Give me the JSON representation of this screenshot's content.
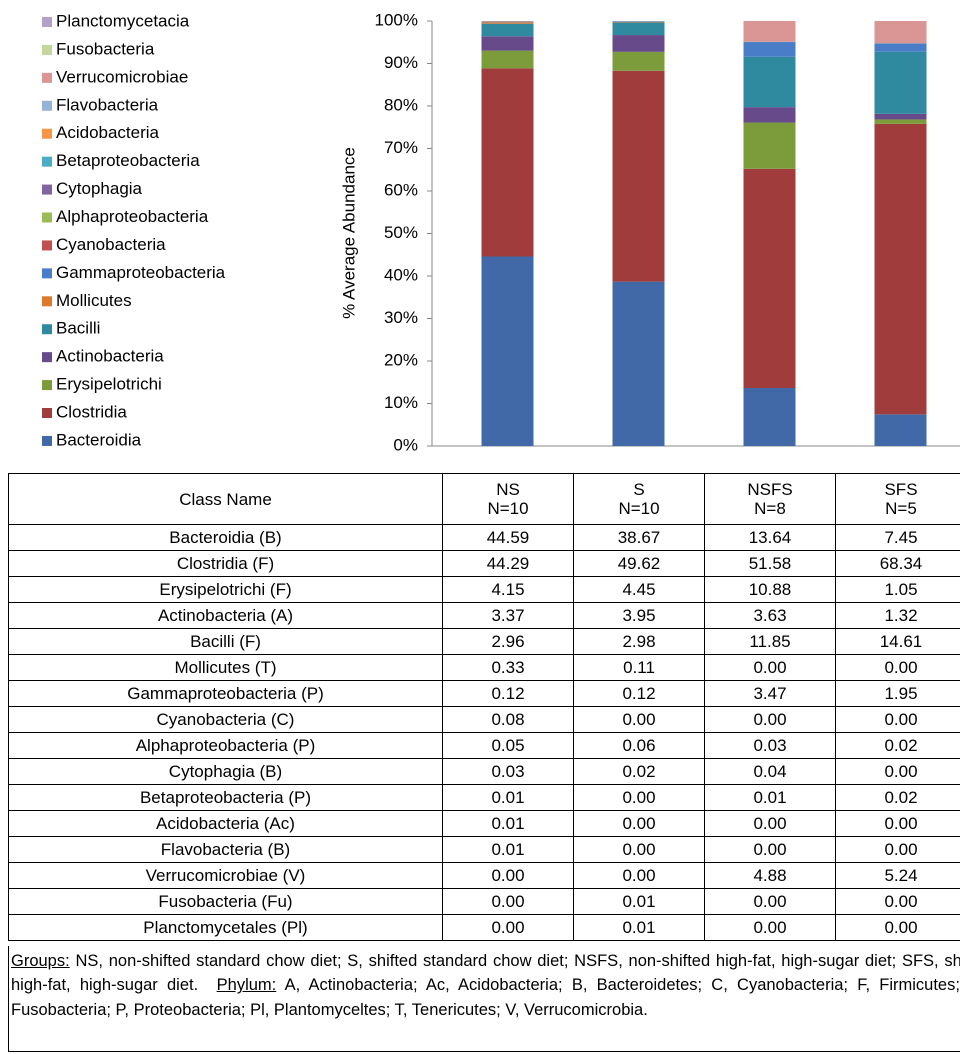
{
  "chart_data": {
    "type": "stacked_bar",
    "ylabel": "% Average Abundance",
    "categories": [
      "NS",
      "S",
      "NSFS",
      "SFS"
    ],
    "ylim": [
      0,
      100
    ],
    "yticks": [
      {
        "value": 0,
        "label": "0%"
      },
      {
        "value": 10,
        "label": "10%"
      },
      {
        "value": 20,
        "label": "20%"
      },
      {
        "value": 30,
        "label": "30%"
      },
      {
        "value": 40,
        "label": "40%"
      },
      {
        "value": 50,
        "label": "50%"
      },
      {
        "value": 60,
        "label": "60%"
      },
      {
        "value": 70,
        "label": "70%"
      },
      {
        "value": 80,
        "label": "80%"
      },
      {
        "value": 90,
        "label": "90%"
      },
      {
        "value": 100,
        "label": "100%"
      }
    ],
    "legend": "left",
    "series": [
      {
        "name": "Bacteroidia",
        "color": "#4169a8",
        "values": [
          44.59,
          38.67,
          13.64,
          7.45
        ],
        "value_labels": [
          "44.59",
          "38.67",
          "13.64",
          "7.45"
        ]
      },
      {
        "name": "Clostridia",
        "color": "#a03c3b",
        "values": [
          44.29,
          49.62,
          51.58,
          68.34
        ],
        "value_labels": [
          "44.29",
          "49.62",
          "51.58",
          "68.34"
        ]
      },
      {
        "name": "Erysipelotrichi",
        "color": "#7c9c3c",
        "values": [
          4.15,
          4.45,
          10.88,
          1.05
        ],
        "value_labels": [
          "4.15",
          "4.45",
          "10.88",
          "1.05"
        ]
      },
      {
        "name": "Actinobacteria",
        "color": "#664a8a",
        "values": [
          3.37,
          3.95,
          3.63,
          1.32
        ],
        "value_labels": [
          "3.37",
          "3.95",
          "3.63",
          "1.32"
        ]
      },
      {
        "name": "Bacilli",
        "color": "#2f8aa0",
        "values": [
          2.96,
          2.98,
          11.85,
          14.61
        ],
        "value_labels": [
          "2.96",
          "2.98",
          "11.85",
          "14.61"
        ]
      },
      {
        "name": "Mollicutes",
        "color": "#dd7a2c",
        "values": [
          0.33,
          0.11,
          0,
          0
        ],
        "value_labels": [
          "0.33",
          "0.11",
          "0.00",
          "0.00"
        ]
      },
      {
        "name": "Gammaproteobacteria",
        "color": "#4a7dc8",
        "values": [
          0.12,
          0.12,
          3.47,
          1.95
        ],
        "value_labels": [
          "0.12",
          "0.12",
          "3.47",
          "1.95"
        ]
      },
      {
        "name": "Cyanobacteria",
        "color": "#c0504d",
        "values": [
          0.08,
          0,
          0,
          0
        ],
        "value_labels": [
          "0.08",
          "0.00",
          "0.00",
          "0.00"
        ]
      },
      {
        "name": "Alphaproteobacteria",
        "color": "#9bbb59",
        "values": [
          0.05,
          0.06,
          0.03,
          0.02
        ],
        "value_labels": [
          "0.05",
          "0.06",
          "0.03",
          "0.02"
        ]
      },
      {
        "name": "Cytophagia",
        "color": "#8064a2",
        "values": [
          0.03,
          0.02,
          0.04,
          0
        ],
        "value_labels": [
          "0.03",
          "0.02",
          "0.04",
          "0.00"
        ]
      },
      {
        "name": "Betaproteobacteria",
        "color": "#4bacc6",
        "values": [
          0.01,
          0,
          0.01,
          0.02
        ],
        "value_labels": [
          "0.01",
          "0.00",
          "0.01",
          "0.02"
        ]
      },
      {
        "name": "Acidobacteria",
        "color": "#f79646",
        "values": [
          0.01,
          0,
          0,
          0
        ],
        "value_labels": [
          "0.01",
          "0.00",
          "0.00",
          "0.00"
        ]
      },
      {
        "name": "Flavobacteria",
        "color": "#95b3d7",
        "values": [
          0.01,
          0,
          0,
          0
        ],
        "value_labels": [
          "0.01",
          "0.00",
          "0.00",
          "0.00"
        ]
      },
      {
        "name": "Verrucomicrobiae",
        "color": "#d99694",
        "values": [
          0,
          0,
          4.88,
          5.24
        ],
        "value_labels": [
          "0.00",
          "0.00",
          "4.88",
          "5.24"
        ]
      },
      {
        "name": "Fusobacteria",
        "color": "#c3d69b",
        "values": [
          0,
          0.01,
          0,
          0
        ],
        "value_labels": [
          "0.00",
          "0.01",
          "0.00",
          "0.00"
        ]
      },
      {
        "name": "Planctomycetacia",
        "color": "#b2a2c7",
        "values": [
          0,
          0.01,
          0,
          0
        ],
        "value_labels": [
          "0.00",
          "0.01",
          "0.00",
          "0.00"
        ]
      }
    ]
  },
  "table": {
    "header": "Class Name",
    "group_sizes": [
      "N=10",
      "N=10",
      "N=8",
      "N=5"
    ],
    "rows": [
      "Bacteroidia (B)",
      "Clostridia (F)",
      "Erysipelotrichi (F)",
      "Actinobacteria (A)",
      "Bacilli (F)",
      "Mollicutes (T)",
      "Gammaproteobacteria (P)",
      "Cyanobacteria (C)",
      "Alphaproteobacteria (P)",
      "Cytophagia (B)",
      "Betaproteobacteria (P)",
      "Acidobacteria (Ac)",
      "Flavobacteria (B)",
      "Verrucomicrobiae (V)",
      "Fusobacteria (Fu)",
      "Planctomycetales (Pl)"
    ]
  },
  "footnote": {
    "groups_label": "Groups:",
    "groups_text": "NS, non-shifted standard chow diet; S, shifted standard chow diet; NSFS, non-shifted high-fat, high-sugar diet; SFS, shifted high-fat, high-sugar diet.",
    "phylum_label": "Phylum:",
    "phylum_text": "A, Actinobacteria; Ac, Acidobacteria; B, Bacteroidetes; C, Cyanobacteria; F, Firmicutes; Fu, Fusobacteria; P, Proteobacteria; Pl, Plantomyceltes; T, Tenericutes; V, Verrucomicrobia."
  }
}
